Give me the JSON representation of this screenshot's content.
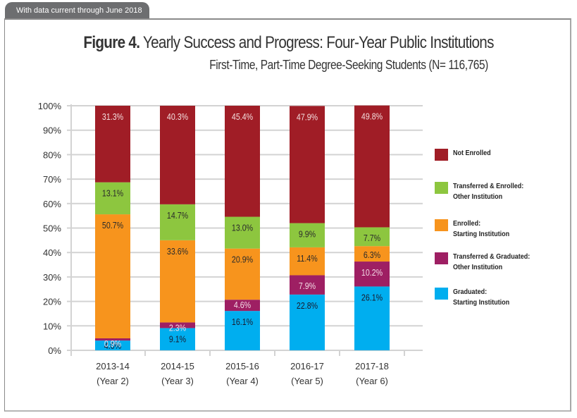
{
  "header_tab": "With data current through June 2018",
  "chart_data": {
    "type": "bar",
    "stacked": true,
    "title_bold": "Figure 4.",
    "title_rest": " Yearly Success and Progress: Four-Year Public Institutions",
    "subtitle": "First-Time, Part-Time Degree-Seeking Students (N= 116,765)",
    "xlabel": "",
    "ylabel": "",
    "ylim": [
      0,
      100
    ],
    "yticks": [
      "0%",
      "10%",
      "20%",
      "30%",
      "40%",
      "50%",
      "60%",
      "70%",
      "80%",
      "90%",
      "100%"
    ],
    "grid": true,
    "legend_position": "right",
    "categories": [
      {
        "line1": "2013-14",
        "line2": "(Year 2)"
      },
      {
        "line1": "2014-15",
        "line2": "(Year 3)"
      },
      {
        "line1": "2015-16",
        "line2": "(Year 4)"
      },
      {
        "line1": "2016-17",
        "line2": "(Year 5)"
      },
      {
        "line1": "2017-18",
        "line2": "(Year 6)"
      }
    ],
    "series": [
      {
        "name": "Graduated: Starting Institution",
        "legend_lines": [
          "Graduated:",
          "Starting Institution"
        ],
        "color": "#00aeef",
        "label_color": "#1a1a2e",
        "values": [
          4.0,
          9.1,
          16.1,
          22.8,
          26.1
        ]
      },
      {
        "name": "Transferred & Graduated: Other Institution",
        "legend_lines": [
          "Transferred & Graduated:",
          "Other Institution"
        ],
        "color": "#9e1f63",
        "label_color": "#f3dbe6",
        "values": [
          0.9,
          2.3,
          4.6,
          7.9,
          10.2
        ]
      },
      {
        "name": "Enrolled: Starting Institution",
        "legend_lines": [
          "Enrolled:",
          "Starting Institution"
        ],
        "color": "#f7941d",
        "label_color": "#2b2b2b",
        "values": [
          50.7,
          33.6,
          20.9,
          11.4,
          6.3
        ]
      },
      {
        "name": "Transferred & Enrolled: Other Institution",
        "legend_lines": [
          "Transferred & Enrolled:",
          "Other Institution"
        ],
        "color": "#8dc63f",
        "label_color": "#2b2b2b",
        "values": [
          13.1,
          14.7,
          13.0,
          9.9,
          7.7
        ]
      },
      {
        "name": "Not Enrolled",
        "legend_lines": [
          "Not Enrolled"
        ],
        "color": "#a01d26",
        "label_color": "#f4dede",
        "values": [
          31.3,
          40.3,
          45.4,
          47.9,
          49.8
        ]
      }
    ],
    "legend_order": [
      4,
      3,
      2,
      1,
      0
    ]
  }
}
